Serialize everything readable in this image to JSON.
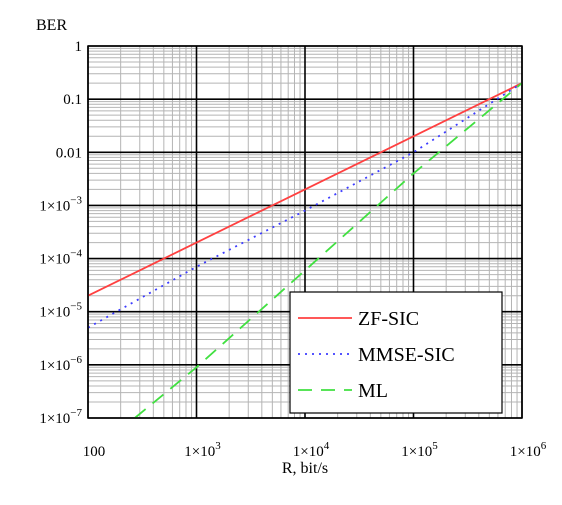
{
  "chart_data": {
    "type": "line",
    "title": "",
    "xlabel": "R, bit/s",
    "ylabel": "BER",
    "x_scale": "log",
    "y_scale": "log",
    "xlim": [
      100,
      1000000
    ],
    "ylim": [
      1e-07,
      1
    ],
    "grid": true,
    "legend_position": "bottom-right",
    "x_ticks": [
      {
        "value": 100,
        "base": "100",
        "exp": ""
      },
      {
        "value": 1000,
        "base": "1×10",
        "exp": "3"
      },
      {
        "value": 10000,
        "base": "1×10",
        "exp": "4"
      },
      {
        "value": 100000,
        "base": "1×10",
        "exp": "5"
      },
      {
        "value": 1000000,
        "base": "1×10",
        "exp": "6"
      }
    ],
    "y_ticks": [
      {
        "value": 1,
        "base": "1",
        "exp": ""
      },
      {
        "value": 0.1,
        "base": "0.1",
        "exp": ""
      },
      {
        "value": 0.01,
        "base": "0.01",
        "exp": ""
      },
      {
        "value": 0.001,
        "base": "1×10",
        "exp": "−3"
      },
      {
        "value": 0.0001,
        "base": "1×10",
        "exp": "−4"
      },
      {
        "value": 1e-05,
        "base": "1×10",
        "exp": "−5"
      },
      {
        "value": 1e-06,
        "base": "1×10",
        "exp": "−6"
      },
      {
        "value": 1e-07,
        "base": "1×10",
        "exp": "−7"
      }
    ],
    "series": [
      {
        "name": "ZF-SIC",
        "color": "#ff4040",
        "dash": "solid",
        "x": [
          100,
          1000,
          10000,
          100000,
          1000000
        ],
        "y": [
          2e-05,
          0.0002,
          0.002,
          0.02,
          0.2
        ]
      },
      {
        "name": "MMSE-SIC",
        "color": "#3c3cff",
        "dash": "dotted",
        "x": [
          100,
          1000,
          10000,
          100000,
          1000000
        ],
        "y": [
          5e-06,
          7e-05,
          0.0008,
          0.01,
          0.2
        ]
      },
      {
        "name": "ML",
        "color": "#40e040",
        "dash": "dashed",
        "x": [
          270,
          1000,
          10000,
          100000,
          1000000
        ],
        "y": [
          1e-07,
          9e-07,
          6e-05,
          0.004,
          0.2
        ]
      }
    ]
  }
}
